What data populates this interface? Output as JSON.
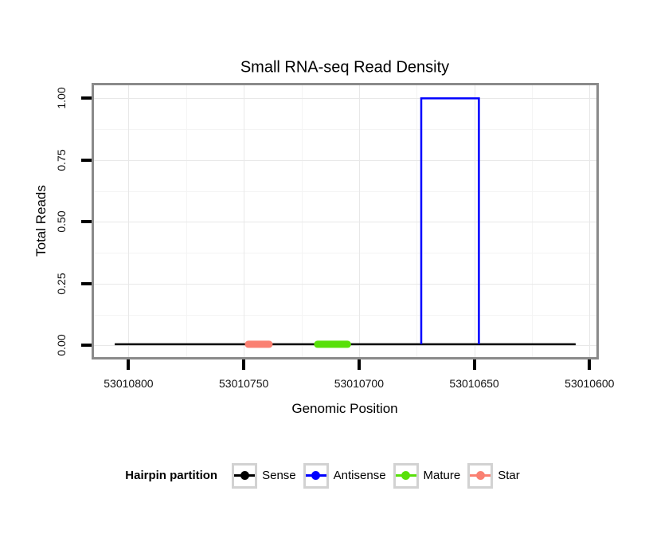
{
  "chart_data": {
    "type": "line",
    "title": "Small RNA-seq Read Density",
    "xlabel": "Genomic Position",
    "ylabel": "Total Reads",
    "x_axis": {
      "ticks": [
        53010800,
        53010750,
        53010700,
        53010650,
        53010600
      ],
      "tick_labels": [
        "53010800",
        "53010750",
        "53010700",
        "53010650",
        "53010600"
      ],
      "domain": [
        53010815,
        53010597
      ],
      "reversed": true
    },
    "y_axis": {
      "ticks": [
        0,
        0.25,
        0.5,
        0.75,
        1
      ],
      "tick_labels": [
        "0.00",
        "0.25",
        "0.50",
        "0.75",
        "1.00"
      ],
      "domain": [
        -0.047,
        1.053
      ]
    },
    "grid": {
      "major": true,
      "minor": true
    },
    "panel_border_color": "#8A8A8A",
    "series": [
      {
        "name": "Sense",
        "color": "#000000",
        "kind": "baseline",
        "x": [
          53010806,
          53010606
        ],
        "y": [
          0.005,
          0.005
        ],
        "stroke_width": 2.5,
        "linecap": "butt"
      },
      {
        "name": "Antisense",
        "color": "#0000FF",
        "kind": "step-peak",
        "x": [
          53010673,
          53010673,
          53010648,
          53010648
        ],
        "y": [
          0.005,
          1.0,
          1.0,
          0.005
        ],
        "stroke_width": 2.5,
        "linecap": "butt"
      },
      {
        "name": "Mature",
        "color": "#58E009",
        "kind": "segment",
        "x": [
          53010718,
          53010705
        ],
        "y": [
          0.005,
          0.005
        ],
        "stroke_width": 9,
        "linecap": "round"
      },
      {
        "name": "Star",
        "color": "#FA8072",
        "kind": "segment",
        "x": [
          53010748,
          53010739
        ],
        "y": [
          0.005,
          0.005
        ],
        "stroke_width": 9,
        "linecap": "round"
      }
    ],
    "legend": {
      "title": "Hairpin partition",
      "position": "bottom",
      "entries": [
        {
          "label": "Sense",
          "color": "#000000"
        },
        {
          "label": "Antisense",
          "color": "#0000FF"
        },
        {
          "label": "Mature",
          "color": "#58E009"
        },
        {
          "label": "Star",
          "color": "#FA8072"
        }
      ]
    }
  }
}
